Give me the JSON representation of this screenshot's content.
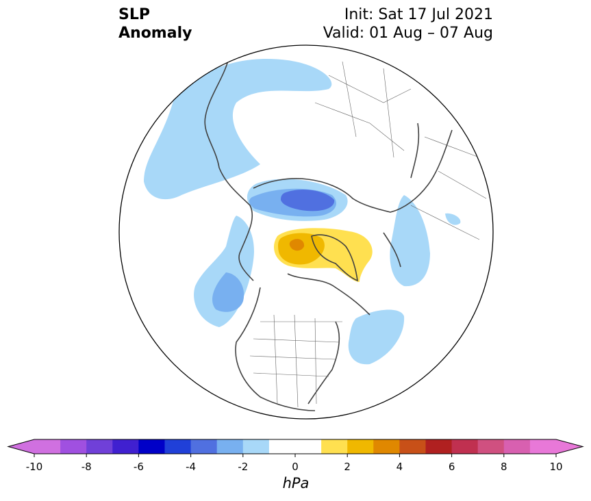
{
  "title": {
    "variable_line1": "SLP",
    "variable_line2": "Anomaly",
    "init": "Init: Sat 17 Jul 2021",
    "valid": "Valid: 01 Aug – 07 Aug"
  },
  "colorbar": {
    "unit": "hPa",
    "levels": [
      -10,
      -9,
      -8,
      -7,
      -6,
      -5,
      -4,
      -3,
      -2,
      -1,
      1,
      2,
      3,
      4,
      5,
      6,
      7,
      8,
      9,
      10
    ],
    "tick_labels": [
      "-10",
      "-8",
      "-6",
      "-4",
      "-2",
      "0",
      "2",
      "4",
      "6",
      "8",
      "10"
    ],
    "colors": [
      "#d070e0",
      "#a050e0",
      "#7040d8",
      "#4020d0",
      "#0000c8",
      "#2040d8",
      "#5070e0",
      "#78b0f0",
      "#a8d8f8",
      "#ffffff",
      "#ffe050",
      "#f0b800",
      "#e08800",
      "#c85018",
      "#b02020",
      "#c03050",
      "#d05080",
      "#d860b0",
      "#e878d8"
    ],
    "extend_min_color": "#d070e0",
    "extend_max_color": "#e878d8"
  },
  "map": {
    "projection": "north-polar-stereographic",
    "anomaly_features": [
      {
        "name": "negative-anomaly-north-atlantic",
        "level": -2
      },
      {
        "name": "negative-anomaly-siberia",
        "level": -4
      },
      {
        "name": "negative-anomaly-gulf-of-alaska",
        "level": -3
      },
      {
        "name": "negative-anomaly-western-europe",
        "level": -2
      },
      {
        "name": "positive-anomaly-arctic-ocean",
        "level": 3
      }
    ]
  }
}
